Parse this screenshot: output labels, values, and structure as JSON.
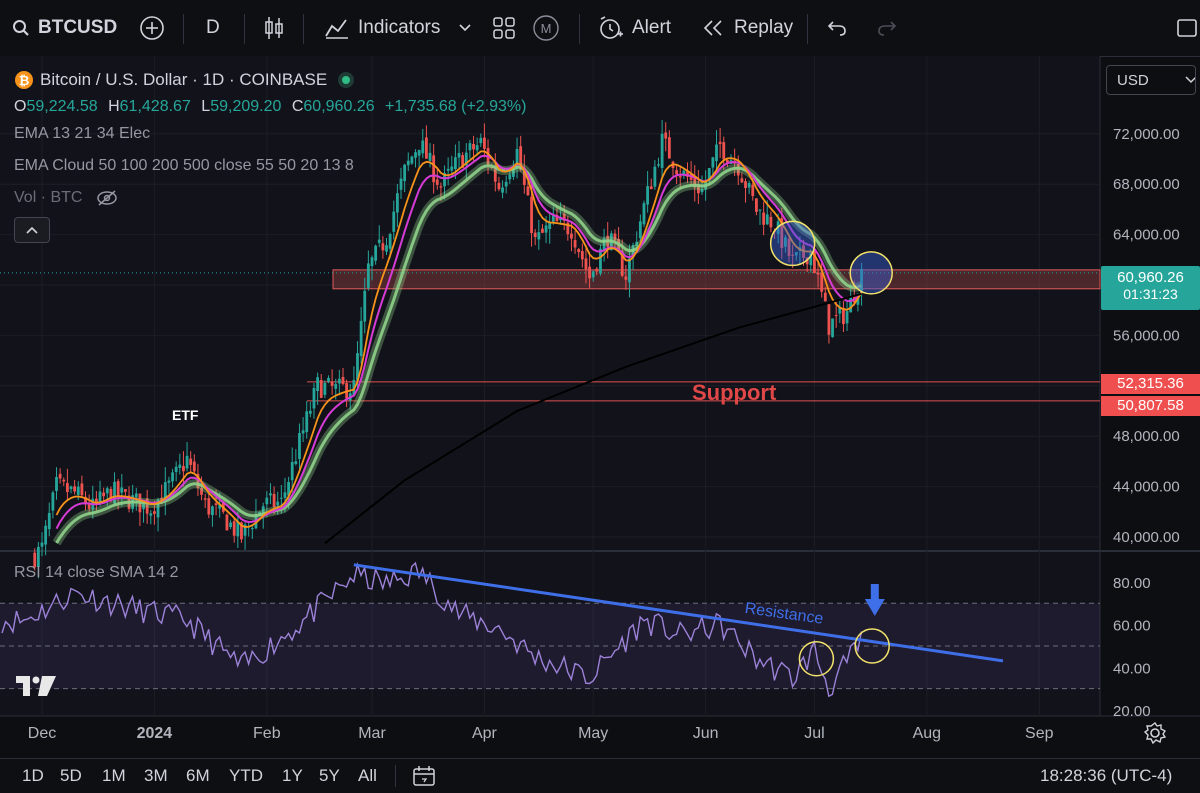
{
  "toolbar": {
    "symbol": "BTCUSD",
    "interval": "D",
    "indicators_label": "Indicators",
    "alert_label": "Alert",
    "replay_label": "Replay"
  },
  "header": {
    "title": "Bitcoin / U.S. Dollar · 1D · COINBASE",
    "open_label": "O",
    "open": "59,224.58",
    "high_label": "H",
    "high": "61,428.67",
    "low_label": "L",
    "low": "59,209.20",
    "close_label": "C",
    "close": "60,960.26",
    "change": "+1,735.68 (+2.93%)",
    "ema_legend": "EMA 13 21 34 Elec",
    "ema_cloud_legend": "EMA Cloud 50 100 200 500 close 55 50 20 13 8",
    "vol_legend": "Vol · BTC",
    "currency": "USD"
  },
  "price_badges": {
    "current": "60,960.26",
    "countdown": "01:31:23",
    "level_upper": "52,315.36",
    "level_lower": "50,807.58"
  },
  "annotations": {
    "etf": "ETF",
    "support": "Support",
    "resistance": "Resistance"
  },
  "rsi": {
    "legend": "RSI 14 close SMA 14 2"
  },
  "bottom_bar": {
    "ranges": [
      "1D",
      "5D",
      "1M",
      "3M",
      "6M",
      "YTD",
      "1Y",
      "5Y",
      "All"
    ],
    "clock": "18:28:36 (UTC-4)"
  },
  "colors": {
    "up": "#26a69a",
    "down": "#ef5350",
    "ema_fast": "#f7931a",
    "ema_mid": "#d63bd6",
    "ema_cloud": "#8fd18a",
    "sma_long": "#000000",
    "rsi": "#9c82d8",
    "trendline": "#3f6fe8",
    "support_zone": "#e05b5b",
    "highlight_circle": "#f2e26b"
  },
  "chart_data": [
    {
      "type": "candlestick",
      "title": "Bitcoin / U.S. Dollar · 1D · COINBASE",
      "x_ticks": [
        "Dec",
        "2024",
        "Feb",
        "Mar",
        "Apr",
        "May",
        "Jun",
        "Jul",
        "Aug",
        "Sep"
      ],
      "y_ticks": [
        40000,
        44000,
        48000,
        52000,
        56000,
        60000,
        64000,
        68000,
        72000
      ],
      "ylim": [
        38500,
        75500
      ],
      "close_series": {
        "x": [
          "2023-11-26",
          "2023-12-01",
          "2023-12-05",
          "2023-12-10",
          "2023-12-15",
          "2023-12-20",
          "2023-12-25",
          "2023-12-31",
          "2024-01-05",
          "2024-01-10",
          "2024-01-15",
          "2024-01-20",
          "2024-01-25",
          "2024-01-31",
          "2024-02-05",
          "2024-02-10",
          "2024-02-15",
          "2024-02-20",
          "2024-02-25",
          "2024-02-29",
          "2024-03-05",
          "2024-03-10",
          "2024-03-14",
          "2024-03-20",
          "2024-03-25",
          "2024-03-31",
          "2024-04-05",
          "2024-04-10",
          "2024-04-15",
          "2024-04-20",
          "2024-04-25",
          "2024-04-30",
          "2024-05-05",
          "2024-05-10",
          "2024-05-15",
          "2024-05-20",
          "2024-05-25",
          "2024-05-31",
          "2024-06-05",
          "2024-06-10",
          "2024-06-15",
          "2024-06-20",
          "2024-06-25",
          "2024-06-30",
          "2024-07-05",
          "2024-07-10",
          "2024-07-14"
        ],
        "close": [
          37600,
          39100,
          44000,
          43500,
          42300,
          43600,
          43000,
          42300,
          44000,
          46200,
          42500,
          41600,
          40000,
          42600,
          42700,
          47500,
          52000,
          51700,
          51900,
          61300,
          63800,
          69000,
          71400,
          67800,
          69900,
          71300,
          67800,
          70600,
          63400,
          64900,
          64500,
          60600,
          63900,
          60800,
          66200,
          71400,
          69000,
          67500,
          71100,
          69500,
          66000,
          64800,
          61800,
          62700,
          56800,
          57900,
          60960
        ]
      },
      "ema_fast_end": 61500,
      "ema_mid_end": 62000,
      "ema_cloud_end": 61800,
      "long_sma_end": 59300,
      "support_zone": [
        59700,
        61200
      ],
      "levels": [
        52315.36,
        50807.58
      ],
      "last_price": 60960.26
    },
    {
      "type": "line",
      "title": "RSI 14 close SMA 14 2",
      "y_ticks": [
        20,
        40,
        60,
        80
      ],
      "ylim": [
        20,
        90
      ],
      "band": [
        30,
        70
      ],
      "x": [
        "2023-11-26",
        "2023-12-10",
        "2023-12-25",
        "2024-01-10",
        "2024-01-25",
        "2024-02-10",
        "2024-02-25",
        "2024-03-05",
        "2024-03-14",
        "2024-03-25",
        "2024-04-05",
        "2024-04-15",
        "2024-04-30",
        "2024-05-15",
        "2024-05-25",
        "2024-06-05",
        "2024-06-15",
        "2024-06-25",
        "2024-07-01",
        "2024-07-05",
        "2024-07-10",
        "2024-07-14"
      ],
      "values": [
        62,
        75,
        68,
        62,
        40,
        60,
        83,
        79,
        85,
        65,
        58,
        45,
        35,
        62,
        55,
        60,
        44,
        35,
        48,
        30,
        42,
        52
      ],
      "trendline": {
        "start": [
          "2024-02-25",
          88
        ],
        "end": [
          "2024-08-22",
          43
        ]
      }
    }
  ]
}
